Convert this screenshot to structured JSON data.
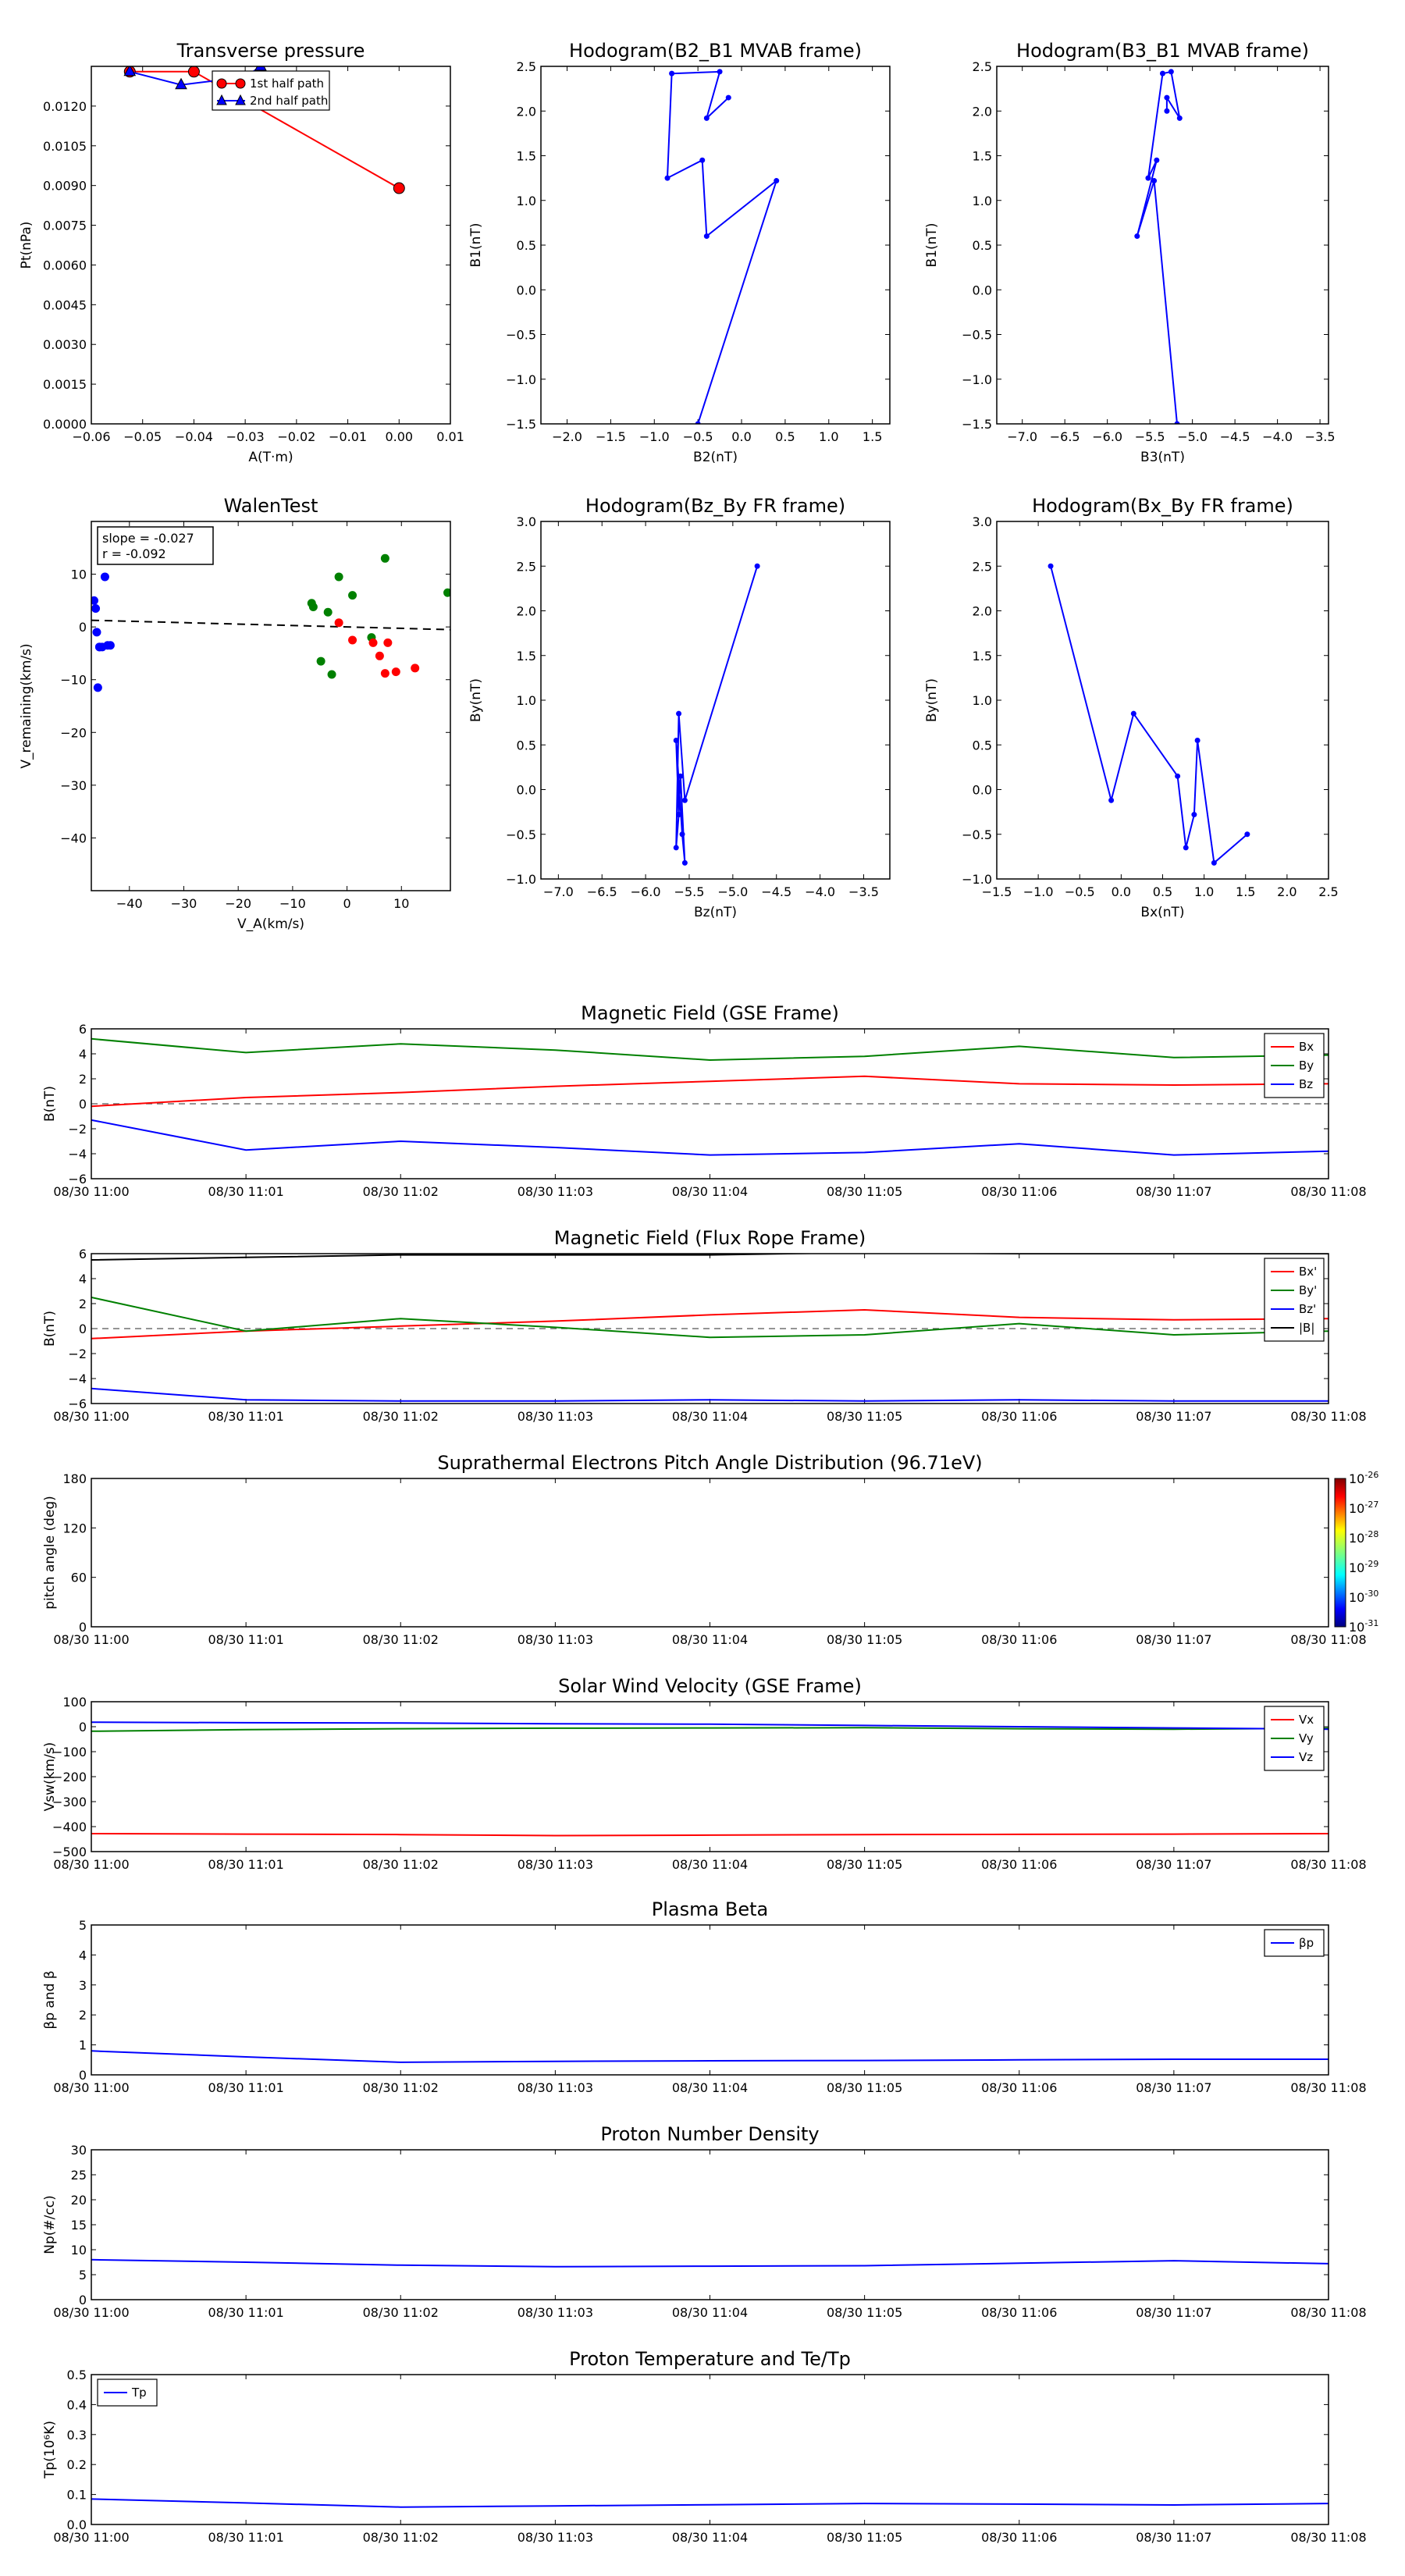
{
  "time_ticks": [
    "08/30 11:00",
    "08/30 11:01",
    "08/30 11:02",
    "08/30 11:03",
    "08/30 11:04",
    "08/30 11:05",
    "08/30 11:06",
    "08/30 11:07",
    "08/30 11:08"
  ],
  "colors": {
    "red": "#ff0000",
    "green": "#008000",
    "blue": "#0000ff",
    "black": "#000000"
  },
  "chart_data": [
    {
      "id": "transverse-pressure",
      "type": "line",
      "title": "Transverse pressure",
      "xlabel": "A(T·m)",
      "ylabel": "Pt(nPa)",
      "xlim": [
        -0.06,
        0.01
      ],
      "ylim": [
        0,
        0.0135
      ],
      "xticks": [
        "−0.06",
        "−0.05",
        "−0.04",
        "−0.03",
        "−0.02",
        "−0.01",
        "0.00",
        "0.01"
      ],
      "yticks": [
        "0.0000",
        "0.0015",
        "0.0030",
        "0.0045",
        "0.0060",
        "0.0075",
        "0.0090",
        "0.0105",
        "0.0120"
      ],
      "series": [
        {
          "name": "1st half path",
          "color": "red",
          "marker": "circle",
          "x": [
            -0.0525,
            -0.04,
            0.0
          ],
          "y": [
            0.0133,
            0.0133,
            0.0089
          ]
        },
        {
          "name": "2nd half path",
          "color": "blue",
          "marker": "triangle",
          "x": [
            -0.0525,
            -0.0425,
            -0.03,
            -0.027
          ],
          "y": [
            0.0133,
            0.0128,
            0.0131,
            0.0135
          ]
        }
      ]
    },
    {
      "id": "hodogram-b2-b1",
      "type": "line",
      "title": "Hodogram(B2_B1 MVAB frame)",
      "xlabel": "B2(nT)",
      "ylabel": "B1(nT)",
      "xlim": [
        -2.3,
        1.7
      ],
      "ylim": [
        -1.5,
        2.5
      ],
      "xticks": [
        "−2.0",
        "−1.5",
        "−1.0",
        "−0.5",
        "0.0",
        "0.5",
        "1.0",
        "1.5"
      ],
      "yticks": [
        "−1.5",
        "−1.0",
        "−0.5",
        "0.0",
        "0.5",
        "1.0",
        "1.5",
        "2.0",
        "2.5"
      ],
      "series": [
        {
          "name": "",
          "color": "blue",
          "x": [
            -0.5,
            0.4,
            -0.4,
            -0.45,
            -0.85,
            -0.8,
            -0.25,
            -0.4,
            -0.15
          ],
          "y": [
            -1.5,
            1.22,
            0.6,
            1.45,
            1.25,
            2.42,
            2.44,
            1.92,
            2.15
          ]
        }
      ]
    },
    {
      "id": "hodogram-b3-b1",
      "type": "line",
      "title": "Hodogram(B3_B1 MVAB frame)",
      "xlabel": "B3(nT)",
      "ylabel": "B1(nT)",
      "xlim": [
        -7.3,
        -3.4
      ],
      "ylim": [
        -1.5,
        2.5
      ],
      "xticks": [
        "−7.0",
        "−6.5",
        "−6.0",
        "−5.5",
        "−5.0",
        "−4.5",
        "−4.0",
        "−3.5"
      ],
      "yticks": [
        "−1.5",
        "−1.0",
        "−0.5",
        "0.0",
        "0.5",
        "1.0",
        "1.5",
        "2.0",
        "2.5"
      ],
      "series": [
        {
          "name": "",
          "color": "blue",
          "x": [
            -5.18,
            -5.45,
            -5.65,
            -5.42,
            -5.52,
            -5.35,
            -5.25,
            -5.15,
            -5.3,
            -5.3
          ],
          "y": [
            -1.5,
            1.22,
            0.6,
            1.45,
            1.25,
            2.42,
            2.44,
            1.92,
            2.15,
            2.0
          ]
        }
      ]
    },
    {
      "id": "walen-test",
      "type": "scatter",
      "title": "WalenTest",
      "xlabel": "V_A(km/s)",
      "ylabel": "V_remaining(km/s)",
      "xlim": [
        -47,
        19
      ],
      "ylim": [
        -50,
        20
      ],
      "xticks": [
        "−40",
        "−30",
        "−20",
        "−10",
        "0",
        "10"
      ],
      "yticks": [
        "−40",
        "−30",
        "−20",
        "−10",
        "0",
        "10"
      ],
      "annotation": [
        "slope = -0.027",
        "r = -0.092"
      ],
      "fit": {
        "slope": -0.027,
        "intercept": 0.0
      },
      "series": [
        {
          "name": "",
          "color": "blue",
          "x": [
            -46.5,
            -46,
            -45.5,
            -45.8,
            -44.5,
            -44,
            -43.5,
            -45,
            -45.5,
            -46.2
          ],
          "y": [
            5,
            -1,
            -3.8,
            -11.5,
            9.5,
            -3.5,
            -3.5,
            -3.8,
            -3.8,
            3.5
          ]
        },
        {
          "name": "",
          "color": "green",
          "x": [
            -6.5,
            -6.2,
            -4.8,
            -3.5,
            -2.8,
            -1.5,
            1,
            4.5,
            7,
            18.5
          ],
          "y": [
            4.5,
            3.8,
            -6.5,
            2.8,
            -9.0,
            9.5,
            6.0,
            -2.0,
            13.0,
            6.5
          ]
        },
        {
          "name": "",
          "color": "red",
          "x": [
            -1.5,
            1,
            4.8,
            6,
            7,
            7.5,
            9,
            12.5
          ],
          "y": [
            0.8,
            -2.5,
            -3.0,
            -5.5,
            -8.8,
            -3.0,
            -8.5,
            -7.8
          ]
        }
      ]
    },
    {
      "id": "hodogram-bz-by",
      "type": "line",
      "title": "Hodogram(Bz_By FR frame)",
      "xlabel": "Bz(nT)",
      "ylabel": "By(nT)",
      "xlim": [
        -7.2,
        -3.2
      ],
      "ylim": [
        -1.0,
        3.0
      ],
      "xticks": [
        "−7.0",
        "−6.5",
        "−6.0",
        "−5.5",
        "−5.0",
        "−4.5",
        "−4.0",
        "−3.5"
      ],
      "yticks": [
        "−1.0",
        "−0.5",
        "0.0",
        "0.5",
        "1.0",
        "1.5",
        "2.0",
        "2.5",
        "3.0"
      ],
      "series": [
        {
          "name": "",
          "color": "blue",
          "x": [
            -4.72,
            -5.55,
            -5.62,
            -5.65,
            -5.62,
            -5.65,
            -5.58,
            -5.55,
            -5.6,
            -5.62
          ],
          "y": [
            2.5,
            -0.12,
            0.85,
            -0.65,
            -0.28,
            0.55,
            -0.5,
            -0.82,
            0.15,
            -0.28
          ]
        }
      ]
    },
    {
      "id": "hodogram-bx-by",
      "type": "line",
      "title": "Hodogram(Bx_By FR frame)",
      "xlabel": "Bx(nT)",
      "ylabel": "By(nT)",
      "xlim": [
        -1.5,
        2.5
      ],
      "ylim": [
        -1.0,
        3.0
      ],
      "xticks": [
        "−1.5",
        "−1.0",
        "−0.5",
        "0.0",
        "0.5",
        "1.0",
        "1.5",
        "2.0",
        "2.5"
      ],
      "yticks": [
        "−1.0",
        "−0.5",
        "0.0",
        "0.5",
        "1.0",
        "1.5",
        "2.0",
        "2.5",
        "3.0"
      ],
      "series": [
        {
          "name": "",
          "color": "blue",
          "x": [
            -0.85,
            -0.12,
            0.15,
            0.68,
            0.78,
            0.88,
            0.92,
            1.12,
            1.52
          ],
          "y": [
            2.5,
            -0.12,
            0.85,
            0.15,
            -0.65,
            -0.28,
            0.55,
            -0.82,
            -0.5
          ]
        }
      ]
    },
    {
      "id": "mag-gse",
      "type": "line",
      "title": "Magnetic Field (GSE Frame)",
      "ylabel": "B(nT)",
      "ylim": [
        -6,
        6
      ],
      "yticks": [
        "−6",
        "−4",
        "−2",
        "0",
        "2",
        "4",
        "6"
      ],
      "zero_line": true,
      "legend": "top-right",
      "series": [
        {
          "name": "Bx",
          "color": "red",
          "values": [
            -0.2,
            0.5,
            0.9,
            1.4,
            1.8,
            2.2,
            1.6,
            1.5,
            1.6
          ]
        },
        {
          "name": "By",
          "color": "green",
          "values": [
            5.2,
            4.1,
            4.8,
            4.3,
            3.5,
            3.8,
            4.6,
            3.7,
            3.9
          ]
        },
        {
          "name": "Bz",
          "color": "blue",
          "values": [
            -1.3,
            -3.7,
            -3.0,
            -3.5,
            -4.1,
            -3.9,
            -3.2,
            -4.1,
            -3.8
          ]
        }
      ]
    },
    {
      "id": "mag-fr",
      "type": "line",
      "title": "Magnetic Field (Flux Rope Frame)",
      "ylabel": "B(nT)",
      "ylim": [
        -6,
        6
      ],
      "yticks": [
        "−6",
        "−4",
        "−2",
        "0",
        "2",
        "4",
        "6"
      ],
      "zero_line": true,
      "legend": "top-right",
      "series": [
        {
          "name": "Bx'",
          "color": "red",
          "values": [
            -0.8,
            -0.2,
            0.2,
            0.6,
            1.1,
            1.5,
            0.9,
            0.7,
            0.8
          ]
        },
        {
          "name": "By'",
          "color": "green",
          "values": [
            2.5,
            -0.2,
            0.8,
            0.1,
            -0.7,
            -0.5,
            0.4,
            -0.5,
            -0.2
          ]
        },
        {
          "name": "Bz'",
          "color": "blue",
          "values": [
            -4.8,
            -5.7,
            -5.8,
            -5.8,
            -5.7,
            -5.8,
            -5.7,
            -5.8,
            -5.8
          ]
        },
        {
          "name": "|B|",
          "color": "black",
          "values": [
            5.5,
            5.7,
            5.9,
            5.9,
            5.9,
            6.1,
            6.0,
            6.0,
            6.0
          ]
        }
      ]
    },
    {
      "id": "pitch-angle",
      "type": "heatmap",
      "title": "Suprathermal Electrons Pitch Angle Distribution (96.71eV)",
      "ylabel": "pitch angle (deg)",
      "ylim": [
        0,
        180
      ],
      "yticks": [
        "0",
        "60",
        "120",
        "180"
      ],
      "colorbar": {
        "ticks": [
          "10",
          "10",
          "10",
          "10",
          "10",
          "10"
        ],
        "exponents": [
          "-26",
          "-27",
          "-28",
          "-29",
          "-30",
          "-31"
        ]
      }
    },
    {
      "id": "sw-velocity",
      "type": "line",
      "title": "Solar Wind Velocity (GSE Frame)",
      "ylabel": "Vsw(km/s)",
      "ylim": [
        -500,
        100
      ],
      "yticks": [
        "−500",
        "−400",
        "−300",
        "−200",
        "−100",
        "0",
        "100"
      ],
      "legend": "top-right",
      "series": [
        {
          "name": "Vx",
          "color": "red",
          "values": [
            -428,
            -430,
            -432,
            -436,
            -434,
            -432,
            -431,
            -430,
            -428
          ]
        },
        {
          "name": "Vy",
          "color": "green",
          "values": [
            -18,
            -12,
            -8,
            -6,
            -5,
            -4,
            -8,
            -10,
            -6
          ]
        },
        {
          "name": "Vz",
          "color": "blue",
          "values": [
            18,
            16,
            15,
            12,
            10,
            5,
            0,
            -5,
            -10
          ]
        }
      ]
    },
    {
      "id": "plasma-beta",
      "type": "line",
      "title": "Plasma Beta",
      "ylabel": "βp and β",
      "ylim": [
        0,
        5
      ],
      "yticks": [
        "0",
        "1",
        "2",
        "3",
        "4",
        "5"
      ],
      "legend": "top-right",
      "series": [
        {
          "name": "βp",
          "color": "blue",
          "values": [
            0.8,
            0.6,
            0.42,
            0.45,
            0.47,
            0.48,
            0.5,
            0.52,
            0.52
          ]
        }
      ]
    },
    {
      "id": "proton-density",
      "type": "line",
      "title": "Proton Number Density",
      "ylabel": "Np(#/cc)",
      "ylim": [
        0,
        30
      ],
      "yticks": [
        "0",
        "5",
        "10",
        "15",
        "20",
        "25",
        "30"
      ],
      "series": [
        {
          "name": "",
          "color": "blue",
          "values": [
            8.0,
            7.5,
            6.9,
            6.6,
            6.7,
            6.8,
            7.3,
            7.8,
            7.2
          ]
        }
      ]
    },
    {
      "id": "proton-temp",
      "type": "line",
      "title": "Proton Temperature and Te/Tp",
      "ylabel": "Tp(10⁶K)",
      "ylim": [
        0,
        0.5
      ],
      "yticks": [
        "0.0",
        "0.1",
        "0.2",
        "0.3",
        "0.4",
        "0.5"
      ],
      "legend": "top-left",
      "series": [
        {
          "name": "Tp",
          "color": "blue",
          "values": [
            0.085,
            0.072,
            0.058,
            0.062,
            0.066,
            0.07,
            0.068,
            0.065,
            0.07
          ]
        }
      ]
    }
  ]
}
